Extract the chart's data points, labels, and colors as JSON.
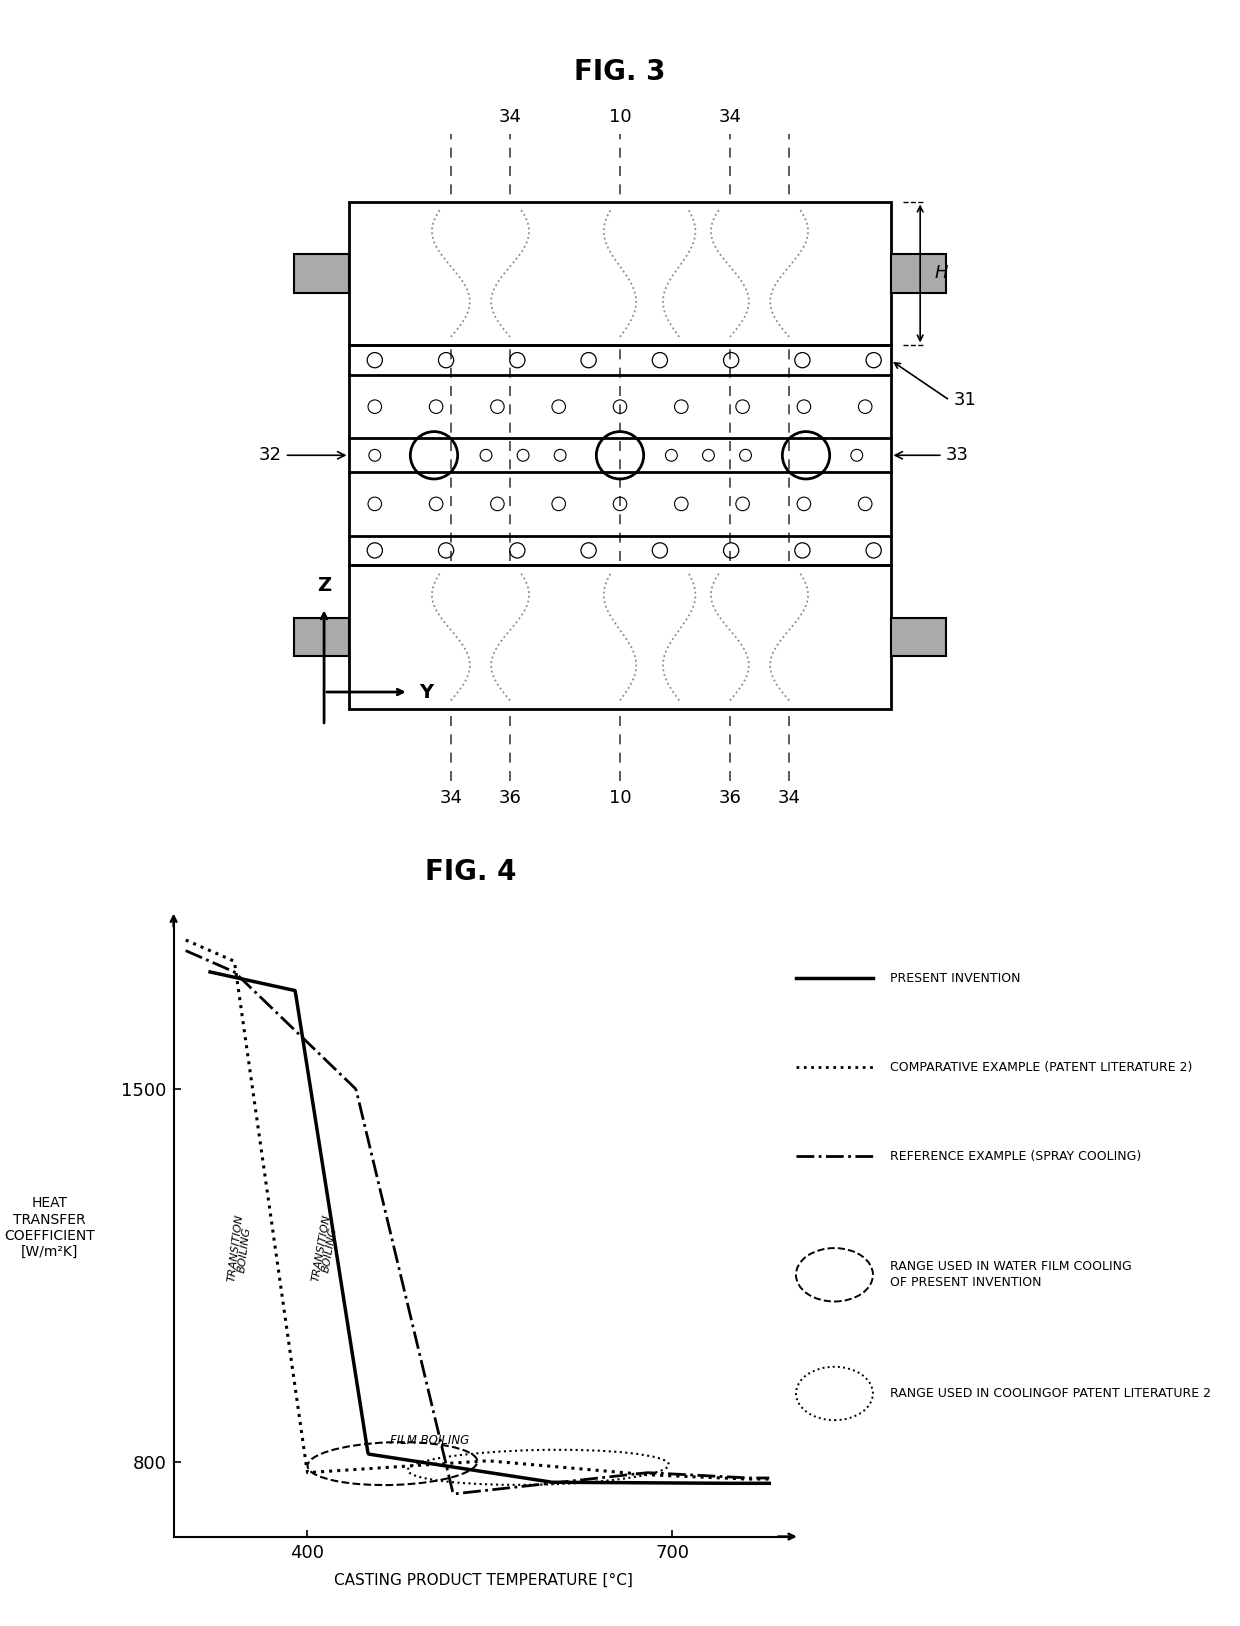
{
  "fig3_title": "FIG. 3",
  "fig4_title": "FIG. 4",
  "background_color": "#ffffff",
  "line_color": "#000000",
  "ylabel": "HEAT\nTRANSFER\nCOEFFICIENT\n[W/m²K]",
  "xlabel": "CASTING PRODUCT TEMPERATURE [°C]",
  "yticks": [
    800,
    1500
  ],
  "xticks": [
    400,
    700
  ],
  "xlim": [
    290,
    800
  ],
  "ylim": [
    660,
    1820
  ]
}
